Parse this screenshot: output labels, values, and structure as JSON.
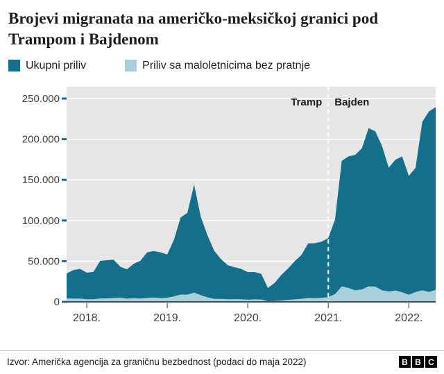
{
  "header": {
    "title": "Brojevi migranata na američko-meksičkoj granici pod Trampom i Bajdenom"
  },
  "legend": [
    {
      "label": "Ukupni priliv",
      "color": "#146f8a"
    },
    {
      "label": "Priliv sa maloletnicima bez pratnje",
      "color": "#a9cfda"
    }
  ],
  "annotations": {
    "before_divider": "Tramp",
    "after_divider": "Bajden"
  },
  "footer": {
    "source": "Izvor: Američka agencija za graničnu bezbednost (podaci do maja 2022)",
    "logo": [
      "B",
      "B",
      "C"
    ]
  },
  "colors": {
    "total": "#146f8a",
    "minors": "#a9cfda",
    "plot_bg": "#e6e6e6",
    "grid": "#ffffff",
    "baseline": "#4d4d4d",
    "axis_text": "#404040",
    "tick_teal": "#146f8a",
    "x_tick": "#757575",
    "divider": "#ffffff",
    "annotation_text": "#1d1d1b"
  },
  "chart_data": {
    "type": "area",
    "title": "Brojevi migranata na američko-meksičkoj granici pod Trampom i Bajdenom",
    "x": [
      "2017-10",
      "2017-11",
      "2017-12",
      "2018-01",
      "2018-02",
      "2018-03",
      "2018-04",
      "2018-05",
      "2018-06",
      "2018-07",
      "2018-08",
      "2018-09",
      "2018-10",
      "2018-11",
      "2018-12",
      "2019-01",
      "2019-02",
      "2019-03",
      "2019-04",
      "2019-05",
      "2019-06",
      "2019-07",
      "2019-08",
      "2019-09",
      "2019-10",
      "2019-11",
      "2019-12",
      "2020-01",
      "2020-02",
      "2020-03",
      "2020-04",
      "2020-05",
      "2020-06",
      "2020-07",
      "2020-08",
      "2020-09",
      "2020-10",
      "2020-11",
      "2020-12",
      "2021-01",
      "2021-02",
      "2021-03",
      "2021-04",
      "2021-05",
      "2021-06",
      "2021-07",
      "2021-08",
      "2021-09",
      "2021-10",
      "2021-11",
      "2021-12",
      "2022-01",
      "2022-02",
      "2022-03",
      "2022-04",
      "2022-05"
    ],
    "series": [
      {
        "name": "Ukupni priliv",
        "color": "#146f8a",
        "values": [
          34871,
          39051,
          40513,
          35905,
          36751,
          50347,
          51168,
          51862,
          43180,
          40011,
          46719,
          50568,
          60781,
          62469,
          60794,
          58317,
          76545,
          103731,
          109415,
          144116,
          104311,
          81777,
          62707,
          52546,
          45139,
          42643,
          40565,
          36585,
          36687,
          34460,
          17106,
          23237,
          33049,
          40929,
          50014,
          57674,
          71929,
          72113,
          73994,
          78414,
          101099,
          173277,
          178854,
          180597,
          188829,
          213593,
          209840,
          192001,
          164837,
          174845,
          178840,
          154874,
          164973,
          221303,
          234088,
          239416
        ]
      },
      {
        "name": "Priliv sa maloletnicima bez pratnje",
        "color": "#a9cfda",
        "values": [
          4181,
          4063,
          4066,
          3227,
          3122,
          4146,
          4302,
          4842,
          5115,
          3938,
          4396,
          4066,
          5004,
          5266,
          4766,
          5100,
          6825,
          8975,
          8897,
          11475,
          8155,
          5551,
          3722,
          3569,
          3177,
          3319,
          3243,
          2684,
          3060,
          2932,
          741,
          1004,
          1624,
          2496,
          3039,
          3756,
          4747,
          4508,
          4852,
          5858,
          9455,
          18951,
          17148,
          14158,
          15253,
          18962,
          18847,
          14193,
          12807,
          13959,
          11893,
          8760,
          12011,
          14167,
          12221,
          14699
        ]
      }
    ],
    "ylim": [
      0,
      250000
    ],
    "yticks": [
      0,
      50000,
      100000,
      150000,
      200000,
      250000
    ],
    "ytick_labels": [
      "0",
      "50.000",
      "100.000",
      "150.000",
      "200.000",
      "250.000"
    ],
    "xtick_labels": [
      "2018.",
      "2019.",
      "2020.",
      "2021.",
      "2022."
    ],
    "xtick_month_index": [
      3,
      15,
      27,
      39,
      51
    ],
    "divider_month_index": 39,
    "divider_labels": {
      "before": "Tramp",
      "after": "Bajden"
    },
    "grid": true,
    "legend_position": "top"
  }
}
